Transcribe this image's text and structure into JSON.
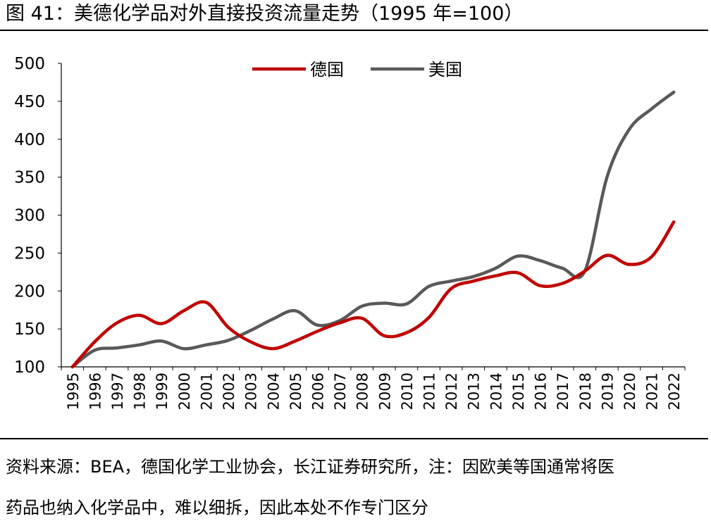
{
  "figure": {
    "title": "图 41：美德化学品对外直接投资流量走势（1995 年=100）",
    "source_line1": "资料来源：BEA，德国化学工业协会，长江证券研究所，注：因欧美等国通常将医",
    "source_line2": "药品也纳入化学品中，难以细拆，因此本处不作专门区分"
  },
  "chart_data": {
    "type": "line",
    "title": "",
    "xlabel": "",
    "ylabel": "",
    "x": [
      "1995",
      "1996",
      "1997",
      "1998",
      "1999",
      "2000",
      "2001",
      "2002",
      "2003",
      "2004",
      "2005",
      "2006",
      "2007",
      "2008",
      "2009",
      "2010",
      "2011",
      "2012",
      "2013",
      "2014",
      "2015",
      "2016",
      "2017",
      "2018",
      "2019",
      "2020",
      "2021",
      "2022"
    ],
    "ylim": [
      100,
      500
    ],
    "yticks": [
      100,
      150,
      200,
      250,
      300,
      350,
      400,
      450,
      500
    ],
    "grid": false,
    "legend_position": "top-center",
    "series": [
      {
        "name": "德国",
        "color": "#c00000",
        "values": [
          100,
          133,
          158,
          168,
          157,
          174,
          185,
          152,
          133,
          124,
          134,
          147,
          158,
          164,
          141,
          145,
          165,
          203,
          213,
          220,
          224,
          207,
          210,
          226,
          247,
          235,
          245,
          291
        ]
      },
      {
        "name": "美国",
        "color": "#595959",
        "values": [
          100,
          122,
          125,
          129,
          134,
          124,
          129,
          135,
          148,
          163,
          174,
          155,
          161,
          180,
          184,
          183,
          206,
          213,
          219,
          230,
          246,
          240,
          230,
          226,
          350,
          413,
          440,
          462
        ]
      }
    ]
  }
}
